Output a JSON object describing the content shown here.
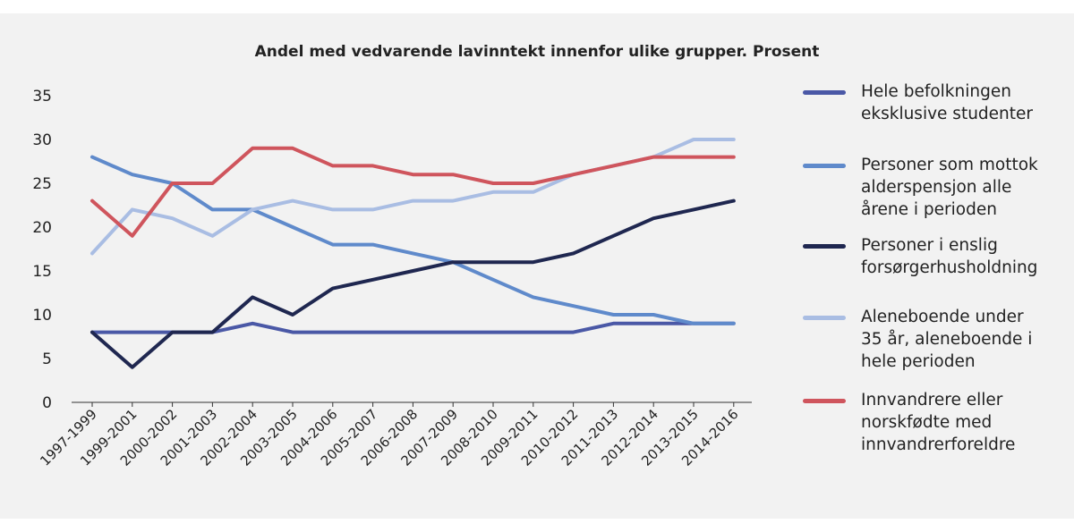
{
  "chart_data": {
    "type": "line",
    "title": "Andel med vedvarende lavinntekt innenfor ulike grupper. Prosent",
    "xlabel": "",
    "ylabel": "",
    "ylim": [
      0,
      35
    ],
    "yticks": [
      0,
      5,
      10,
      15,
      20,
      25,
      30,
      35
    ],
    "grid": false,
    "legend": "right",
    "categories": [
      "1997-1999",
      "1999-2001",
      "2000-2002",
      "2001-2003",
      "2002-2004",
      "2003-2005",
      "2004-2006",
      "2005-2007",
      "2006-2008",
      "2007-2009",
      "2008-2010",
      "2009-2011",
      "2010-2012",
      "2011-2013",
      "2012-2014",
      "2013-2015",
      "2014-2016"
    ],
    "series": [
      {
        "name": "Hele befolkningen\neksklusive studenter",
        "color": "#4a58a6",
        "values": [
          8,
          8,
          8,
          8,
          9,
          8,
          8,
          8,
          8,
          8,
          8,
          8,
          8,
          9,
          9,
          9,
          9
        ]
      },
      {
        "name": "Personer som mottok\nalderspensjon alle\nårene i perioden",
        "color": "#5f8acb",
        "values": [
          28,
          26,
          25,
          22,
          22,
          20,
          18,
          18,
          17,
          16,
          14,
          12,
          11,
          10,
          10,
          9,
          9
        ]
      },
      {
        "name": "Personer i enslig\nforsørgerhusholdning",
        "color": "#1f2750",
        "values": [
          8,
          4,
          8,
          8,
          12,
          10,
          13,
          14,
          15,
          16,
          16,
          16,
          17,
          19,
          21,
          22,
          23
        ]
      },
      {
        "name": "Aleneboende under\n35 år, aleneboende i\nhele perioden",
        "color": "#a9bde3",
        "values": [
          17,
          22,
          21,
          19,
          22,
          23,
          22,
          22,
          23,
          23,
          24,
          24,
          26,
          27,
          28,
          30,
          30
        ]
      },
      {
        "name": "Innvandrere eller\nnorskfødte med\ninnvandrerforeldre",
        "color": "#cf555d",
        "values": [
          23,
          19,
          25,
          25,
          29,
          29,
          27,
          27,
          26,
          26,
          25,
          25,
          26,
          27,
          28,
          28,
          28
        ]
      }
    ]
  }
}
